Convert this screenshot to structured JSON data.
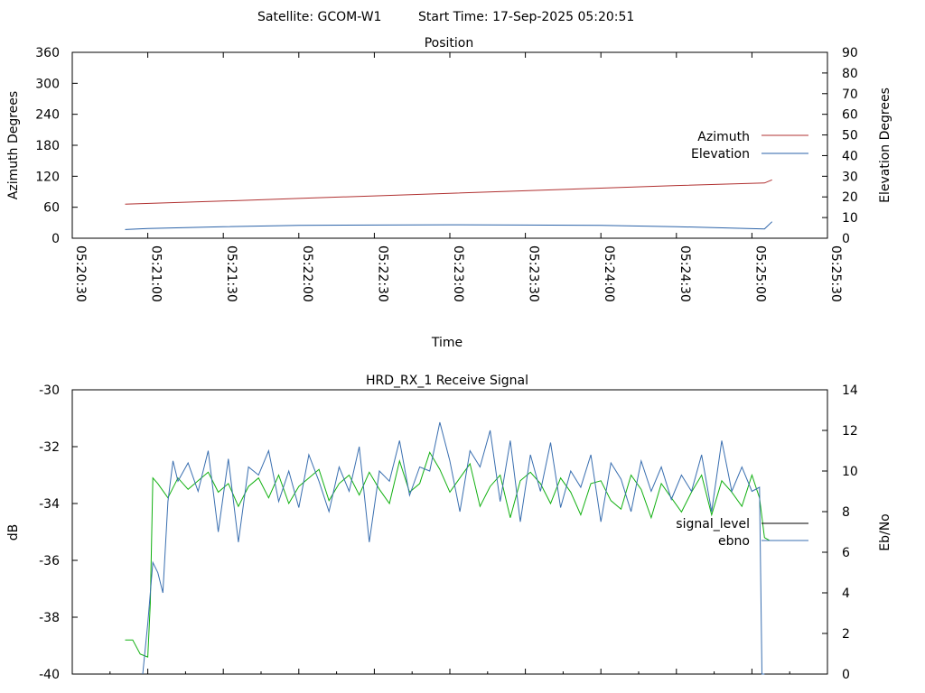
{
  "header": {
    "satellite_label": "Satellite: GCOM-W1",
    "start_time_label": "Start Time: 17-Sep-2025 05:20:51"
  },
  "colors": {
    "azimuth": "#b03030",
    "elevation": "#2a62a8",
    "signal_level": "#11b011",
    "ebno": "#3a6fb0",
    "signal_level_legend": "#000000"
  },
  "chart_data": [
    {
      "type": "line",
      "title": "Position",
      "xlabel": "Time",
      "ylabel": "Azimuth Degrees",
      "ylabel2": "Elevation Degrees",
      "xlim": [
        "05:20:30",
        "05:25:30"
      ],
      "ylim": [
        0,
        360
      ],
      "ylim2": [
        0,
        90
      ],
      "x_ticks": [
        "05:20:30",
        "05:21:00",
        "05:21:30",
        "05:22:00",
        "05:22:30",
        "05:23:00",
        "05:23:30",
        "05:24:00",
        "05:24:30",
        "05:25:00",
        "05:25:30"
      ],
      "y_ticks": [
        "0",
        "60",
        "120",
        "180",
        "240",
        "300",
        "360"
      ],
      "y2_ticks": [
        "0",
        "10",
        "20",
        "30",
        "40",
        "50",
        "60",
        "70",
        "80",
        "90"
      ],
      "legend_position": "right",
      "series": [
        {
          "name": "Azimuth",
          "axis": "left",
          "x": [
            "05:20:51",
            "05:21:30",
            "05:22:00",
            "05:22:30",
            "05:23:00",
            "05:23:30",
            "05:24:00",
            "05:24:30",
            "05:25:05",
            "05:25:08"
          ],
          "values": [
            66,
            72,
            77,
            82,
            87,
            92,
            97,
            102,
            107,
            113
          ]
        },
        {
          "name": "Elevation",
          "axis": "right",
          "x": [
            "05:20:51",
            "05:21:00",
            "05:21:30",
            "05:22:00",
            "05:22:30",
            "05:23:00",
            "05:23:30",
            "05:24:00",
            "05:24:30",
            "05:25:05",
            "05:25:08"
          ],
          "values": [
            4.2,
            4.7,
            5.6,
            6.2,
            6.4,
            6.5,
            6.4,
            6.2,
            5.6,
            4.5,
            8.0
          ]
        }
      ]
    },
    {
      "type": "line",
      "title": "HRD_RX_1 Receive Signal",
      "ylabel": "dB",
      "ylabel2": "Eb/No",
      "xlim": [
        "05:20:30",
        "05:25:30"
      ],
      "ylim": [
        -40,
        -30
      ],
      "ylim2": [
        0,
        14
      ],
      "y_ticks": [
        "-40",
        "-38",
        "-36",
        "-34",
        "-32",
        "-30"
      ],
      "y2_ticks": [
        "0",
        "2",
        "4",
        "6",
        "8",
        "10",
        "12",
        "14"
      ],
      "legend_position": "right",
      "series": [
        {
          "name": "signal_level",
          "axis": "left",
          "x": [
            "05:20:51",
            "05:20:54",
            "05:20:57",
            "05:21:00",
            "05:21:01",
            "05:21:02",
            "05:21:04",
            "05:21:08",
            "05:21:12",
            "05:21:16",
            "05:21:20",
            "05:21:24",
            "05:21:28",
            "05:21:32",
            "05:21:36",
            "05:21:40",
            "05:21:44",
            "05:21:48",
            "05:21:52",
            "05:21:56",
            "05:22:00",
            "05:22:04",
            "05:22:08",
            "05:22:12",
            "05:22:16",
            "05:22:20",
            "05:22:24",
            "05:22:28",
            "05:22:32",
            "05:22:36",
            "05:22:40",
            "05:22:44",
            "05:22:48",
            "05:22:52",
            "05:22:56",
            "05:23:00",
            "05:23:04",
            "05:23:08",
            "05:23:12",
            "05:23:16",
            "05:23:20",
            "05:23:24",
            "05:23:28",
            "05:23:32",
            "05:23:36",
            "05:23:40",
            "05:23:44",
            "05:23:48",
            "05:23:52",
            "05:23:56",
            "05:24:00",
            "05:24:04",
            "05:24:08",
            "05:24:12",
            "05:24:16",
            "05:24:20",
            "05:24:24",
            "05:24:28",
            "05:24:32",
            "05:24:36",
            "05:24:40",
            "05:24:44",
            "05:24:48",
            "05:24:52",
            "05:24:56",
            "05:25:00",
            "05:25:03",
            "05:25:05",
            "05:25:07"
          ],
          "values": [
            -38.8,
            -38.8,
            -39.3,
            -39.4,
            -37.5,
            -33.1,
            -33.3,
            -33.8,
            -33.1,
            -33.5,
            -33.2,
            -32.9,
            -33.6,
            -33.3,
            -34.1,
            -33.4,
            -33.1,
            -33.8,
            -33.0,
            -34.0,
            -33.4,
            -33.1,
            -32.8,
            -33.9,
            -33.3,
            -33.0,
            -33.7,
            -32.9,
            -33.5,
            -34.0,
            -32.5,
            -33.6,
            -33.3,
            -32.2,
            -32.8,
            -33.6,
            -33.1,
            -32.6,
            -34.1,
            -33.4,
            -33.0,
            -34.5,
            -33.2,
            -32.9,
            -33.3,
            -34.0,
            -33.1,
            -33.6,
            -34.4,
            -33.3,
            -33.2,
            -33.9,
            -34.2,
            -33.0,
            -33.5,
            -34.5,
            -33.3,
            -33.8,
            -34.3,
            -33.6,
            -33.0,
            -34.4,
            -33.2,
            -33.6,
            -34.1,
            -33.0,
            -33.8,
            -35.2,
            -35.3
          ]
        },
        {
          "name": "ebno",
          "axis": "right",
          "x": [
            "05:20:58",
            "05:21:00",
            "05:21:02",
            "05:21:04",
            "05:21:06",
            "05:21:08",
            "05:21:10",
            "05:21:12",
            "05:21:16",
            "05:21:20",
            "05:21:24",
            "05:21:28",
            "05:21:32",
            "05:21:36",
            "05:21:40",
            "05:21:44",
            "05:21:48",
            "05:21:52",
            "05:21:56",
            "05:22:00",
            "05:22:04",
            "05:22:08",
            "05:22:12",
            "05:22:16",
            "05:22:20",
            "05:22:24",
            "05:22:28",
            "05:22:32",
            "05:22:36",
            "05:22:40",
            "05:22:44",
            "05:22:48",
            "05:22:52",
            "05:22:56",
            "05:23:00",
            "05:23:04",
            "05:23:08",
            "05:23:12",
            "05:23:16",
            "05:23:20",
            "05:23:24",
            "05:23:28",
            "05:23:32",
            "05:23:36",
            "05:23:40",
            "05:23:44",
            "05:23:48",
            "05:23:52",
            "05:23:56",
            "05:24:00",
            "05:24:04",
            "05:24:08",
            "05:24:12",
            "05:24:16",
            "05:24:20",
            "05:24:24",
            "05:24:28",
            "05:24:32",
            "05:24:36",
            "05:24:40",
            "05:24:44",
            "05:24:48",
            "05:24:52",
            "05:24:56",
            "05:25:00",
            "05:25:03",
            "05:25:04",
            "05:25:05"
          ],
          "values": [
            0.0,
            2.5,
            5.5,
            5.0,
            4.0,
            8.5,
            10.5,
            9.5,
            10.4,
            9.0,
            11.0,
            7.0,
            10.6,
            6.5,
            10.2,
            9.8,
            11.0,
            8.5,
            10.0,
            8.2,
            10.8,
            9.5,
            8.0,
            10.2,
            9.0,
            11.2,
            6.5,
            10.0,
            9.5,
            11.5,
            8.8,
            10.2,
            10.0,
            12.4,
            10.5,
            8.0,
            11.0,
            10.2,
            12.0,
            8.5,
            11.5,
            7.5,
            10.8,
            9.0,
            11.4,
            8.2,
            10.0,
            9.2,
            10.8,
            7.5,
            10.4,
            9.6,
            8.0,
            10.5,
            9.0,
            10.2,
            8.6,
            9.8,
            9.0,
            10.8,
            8.0,
            11.5,
            9.0,
            10.2,
            9.0,
            9.2,
            0.0,
            0.0
          ]
        }
      ]
    }
  ]
}
